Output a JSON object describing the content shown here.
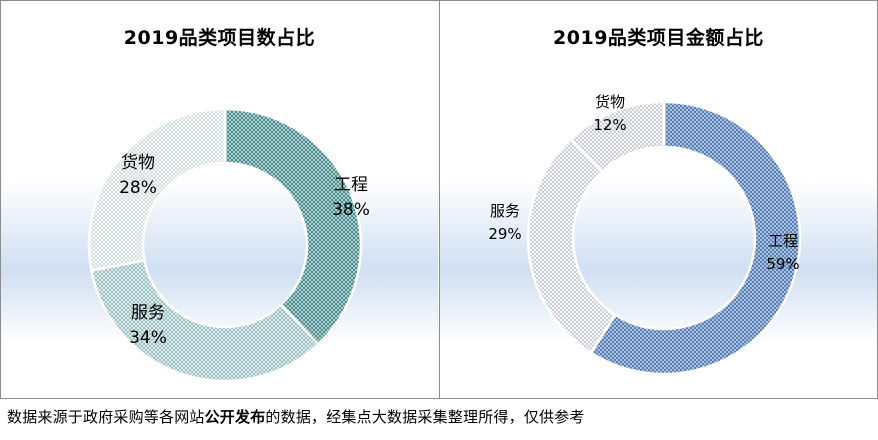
{
  "chart_data": [
    {
      "type": "pie",
      "title": "2019品类项目数占比",
      "categories": [
        "工程",
        "服务",
        "货物"
      ],
      "values": [
        38,
        34,
        28
      ],
      "value_labels": [
        "38%",
        "34%",
        "28%"
      ],
      "colors": [
        "#5c9ea0",
        "#8fb6b8",
        "#c7d5d5"
      ]
    },
    {
      "type": "pie",
      "title": "2019品类项目金额占比",
      "categories": [
        "工程",
        "服务",
        "货物"
      ],
      "values": [
        59,
        29,
        12
      ],
      "value_labels": [
        "59%",
        "29%",
        "12%"
      ],
      "colors": [
        "#6f92c2",
        "#c9cdd8",
        "#c9cdd8"
      ]
    }
  ],
  "footer": {
    "before": "数据来源于政府采购等各网站",
    "bold": "公开发布",
    "after": "的数据，经集点大数据采集整理所得，仅供参考"
  }
}
